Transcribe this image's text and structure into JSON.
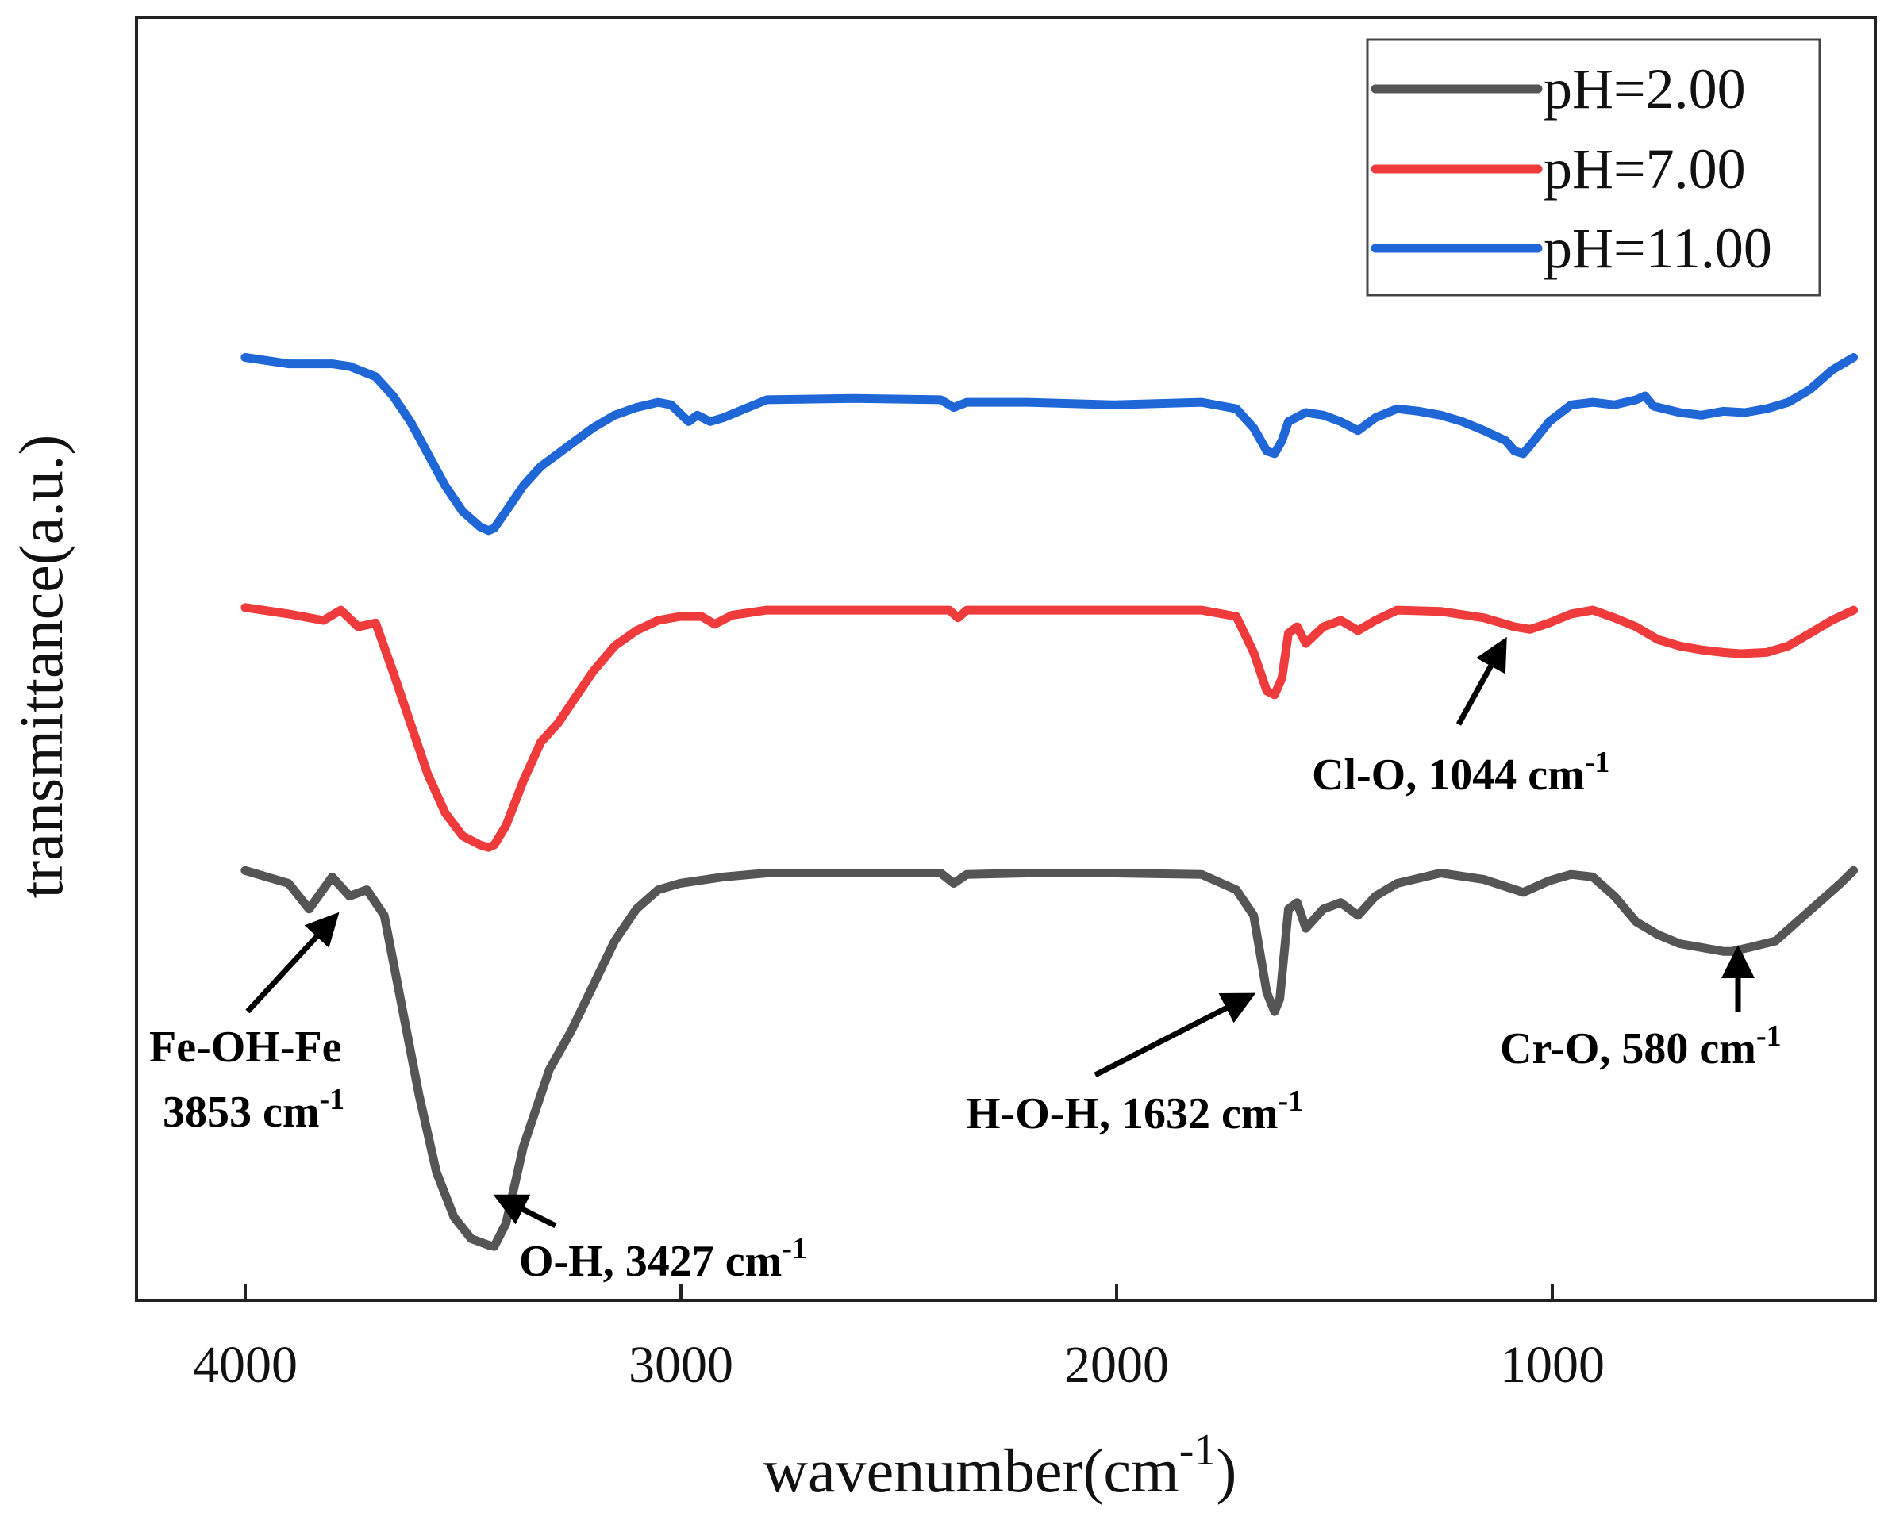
{
  "chart_data": {
    "type": "line",
    "title": "",
    "xlabel": "wavenumber(cm",
    "xlabel_sup": "-1",
    "xlabel_close": ")",
    "ylabel": "transmittance(a.u.)",
    "xlim": [
      4250,
      250
    ],
    "ylim": [
      0,
      10
    ],
    "x_ticks": [
      4000,
      3000,
      2000,
      1000
    ],
    "x_tick_labels": [
      "4000",
      "3000",
      "2000",
      "1000"
    ],
    "grid": false,
    "legend_position": "top-right",
    "series": [
      {
        "name": "pH=2.00",
        "color": "#555555",
        "points": [
          [
            4000,
            3.35
          ],
          [
            3900,
            3.25
          ],
          [
            3853,
            3.05
          ],
          [
            3800,
            3.3
          ],
          [
            3760,
            3.15
          ],
          [
            3720,
            3.2
          ],
          [
            3680,
            3.0
          ],
          [
            3640,
            2.3
          ],
          [
            3600,
            1.6
          ],
          [
            3560,
            1.0
          ],
          [
            3520,
            0.65
          ],
          [
            3480,
            0.48
          ],
          [
            3440,
            0.43
          ],
          [
            3427,
            0.42
          ],
          [
            3400,
            0.6
          ],
          [
            3360,
            1.2
          ],
          [
            3300,
            1.8
          ],
          [
            3250,
            2.1
          ],
          [
            3200,
            2.45
          ],
          [
            3150,
            2.8
          ],
          [
            3100,
            3.05
          ],
          [
            3050,
            3.2
          ],
          [
            3000,
            3.25
          ],
          [
            2900,
            3.3
          ],
          [
            2800,
            3.33
          ],
          [
            2600,
            3.33
          ],
          [
            2400,
            3.33
          ],
          [
            2370,
            3.25
          ],
          [
            2340,
            3.32
          ],
          [
            2200,
            3.33
          ],
          [
            2000,
            3.33
          ],
          [
            1800,
            3.32
          ],
          [
            1720,
            3.2
          ],
          [
            1680,
            3.0
          ],
          [
            1650,
            2.4
          ],
          [
            1632,
            2.25
          ],
          [
            1620,
            2.35
          ],
          [
            1600,
            3.05
          ],
          [
            1580,
            3.1
          ],
          [
            1560,
            2.9
          ],
          [
            1520,
            3.05
          ],
          [
            1480,
            3.1
          ],
          [
            1440,
            3.0
          ],
          [
            1400,
            3.15
          ],
          [
            1350,
            3.25
          ],
          [
            1250,
            3.33
          ],
          [
            1150,
            3.28
          ],
          [
            1060,
            3.18
          ],
          [
            1000,
            3.27
          ],
          [
            950,
            3.32
          ],
          [
            900,
            3.3
          ],
          [
            850,
            3.15
          ],
          [
            800,
            2.95
          ],
          [
            750,
            2.85
          ],
          [
            700,
            2.78
          ],
          [
            650,
            2.75
          ],
          [
            600,
            2.72
          ],
          [
            580,
            2.72
          ],
          [
            540,
            2.75
          ],
          [
            480,
            2.8
          ],
          [
            430,
            2.95
          ],
          [
            380,
            3.1
          ],
          [
            330,
            3.25
          ],
          [
            300,
            3.35
          ]
        ]
      },
      {
        "name": "pH=7.00",
        "color": "#ef3b3b",
        "points": [
          [
            4000,
            5.4
          ],
          [
            3900,
            5.35
          ],
          [
            3820,
            5.3
          ],
          [
            3780,
            5.38
          ],
          [
            3740,
            5.25
          ],
          [
            3700,
            5.28
          ],
          [
            3660,
            4.9
          ],
          [
            3620,
            4.5
          ],
          [
            3580,
            4.1
          ],
          [
            3540,
            3.8
          ],
          [
            3500,
            3.62
          ],
          [
            3460,
            3.55
          ],
          [
            3440,
            3.53
          ],
          [
            3427,
            3.55
          ],
          [
            3400,
            3.7
          ],
          [
            3360,
            4.05
          ],
          [
            3320,
            4.35
          ],
          [
            3280,
            4.5
          ],
          [
            3240,
            4.7
          ],
          [
            3200,
            4.9
          ],
          [
            3150,
            5.1
          ],
          [
            3100,
            5.22
          ],
          [
            3050,
            5.3
          ],
          [
            3000,
            5.33
          ],
          [
            2950,
            5.33
          ],
          [
            2920,
            5.27
          ],
          [
            2880,
            5.34
          ],
          [
            2800,
            5.38
          ],
          [
            2600,
            5.38
          ],
          [
            2380,
            5.38
          ],
          [
            2360,
            5.32
          ],
          [
            2340,
            5.38
          ],
          [
            2200,
            5.38
          ],
          [
            2000,
            5.38
          ],
          [
            1800,
            5.38
          ],
          [
            1720,
            5.33
          ],
          [
            1680,
            5.05
          ],
          [
            1650,
            4.75
          ],
          [
            1632,
            4.72
          ],
          [
            1615,
            4.85
          ],
          [
            1600,
            5.2
          ],
          [
            1580,
            5.25
          ],
          [
            1560,
            5.12
          ],
          [
            1520,
            5.25
          ],
          [
            1480,
            5.3
          ],
          [
            1440,
            5.22
          ],
          [
            1400,
            5.3
          ],
          [
            1350,
            5.38
          ],
          [
            1250,
            5.37
          ],
          [
            1150,
            5.32
          ],
          [
            1080,
            5.25
          ],
          [
            1044,
            5.23
          ],
          [
            1000,
            5.28
          ],
          [
            950,
            5.35
          ],
          [
            900,
            5.38
          ],
          [
            850,
            5.32
          ],
          [
            800,
            5.25
          ],
          [
            750,
            5.15
          ],
          [
            700,
            5.1
          ],
          [
            650,
            5.07
          ],
          [
            600,
            5.05
          ],
          [
            560,
            5.04
          ],
          [
            500,
            5.05
          ],
          [
            450,
            5.1
          ],
          [
            400,
            5.2
          ],
          [
            350,
            5.3
          ],
          [
            300,
            5.38
          ]
        ]
      },
      {
        "name": "pH=11.00",
        "color": "#1f66d6",
        "points": [
          [
            4000,
            7.35
          ],
          [
            3900,
            7.3
          ],
          [
            3800,
            7.3
          ],
          [
            3760,
            7.28
          ],
          [
            3700,
            7.2
          ],
          [
            3660,
            7.05
          ],
          [
            3620,
            6.85
          ],
          [
            3580,
            6.6
          ],
          [
            3540,
            6.35
          ],
          [
            3500,
            6.15
          ],
          [
            3460,
            6.03
          ],
          [
            3440,
            6.0
          ],
          [
            3427,
            6.02
          ],
          [
            3400,
            6.15
          ],
          [
            3360,
            6.35
          ],
          [
            3320,
            6.5
          ],
          [
            3280,
            6.6
          ],
          [
            3240,
            6.7
          ],
          [
            3200,
            6.8
          ],
          [
            3150,
            6.9
          ],
          [
            3100,
            6.96
          ],
          [
            3050,
            7.0
          ],
          [
            3020,
            6.98
          ],
          [
            2980,
            6.85
          ],
          [
            2960,
            6.9
          ],
          [
            2930,
            6.85
          ],
          [
            2900,
            6.88
          ],
          [
            2850,
            6.95
          ],
          [
            2800,
            7.02
          ],
          [
            2600,
            7.03
          ],
          [
            2400,
            7.02
          ],
          [
            2370,
            6.96
          ],
          [
            2340,
            7.0
          ],
          [
            2200,
            7.0
          ],
          [
            2000,
            6.98
          ],
          [
            1800,
            7.0
          ],
          [
            1720,
            6.95
          ],
          [
            1680,
            6.8
          ],
          [
            1650,
            6.62
          ],
          [
            1632,
            6.6
          ],
          [
            1615,
            6.7
          ],
          [
            1600,
            6.85
          ],
          [
            1560,
            6.92
          ],
          [
            1520,
            6.9
          ],
          [
            1480,
            6.85
          ],
          [
            1440,
            6.78
          ],
          [
            1400,
            6.88
          ],
          [
            1350,
            6.95
          ],
          [
            1300,
            6.93
          ],
          [
            1250,
            6.9
          ],
          [
            1200,
            6.85
          ],
          [
            1150,
            6.78
          ],
          [
            1100,
            6.7
          ],
          [
            1080,
            6.62
          ],
          [
            1060,
            6.6
          ],
          [
            1040,
            6.68
          ],
          [
            1000,
            6.85
          ],
          [
            950,
            6.98
          ],
          [
            900,
            7.0
          ],
          [
            850,
            6.98
          ],
          [
            800,
            7.02
          ],
          [
            780,
            7.05
          ],
          [
            760,
            6.97
          ],
          [
            700,
            6.92
          ],
          [
            650,
            6.9
          ],
          [
            600,
            6.93
          ],
          [
            550,
            6.92
          ],
          [
            500,
            6.95
          ],
          [
            450,
            7.0
          ],
          [
            400,
            7.1
          ],
          [
            350,
            7.25
          ],
          [
            300,
            7.35
          ]
        ]
      }
    ],
    "annotations": [
      {
        "id": "fe-oh-fe",
        "line1": "Fe-OH-Fe",
        "line2_main": "3853 cm",
        "line2_sup": "-1"
      },
      {
        "id": "o-h",
        "line1_main": "O-H, 3427 cm",
        "line1_sup": "-1"
      },
      {
        "id": "h-o-h",
        "line1_main": "H-O-H, 1632 cm",
        "line1_sup": "-1"
      },
      {
        "id": "cl-o",
        "line1_main": "Cl-O, 1044 cm",
        "line1_sup": "-1"
      },
      {
        "id": "cr-o",
        "line1_main": "Cr-O, 580 cm",
        "line1_sup": "-1"
      }
    ]
  }
}
